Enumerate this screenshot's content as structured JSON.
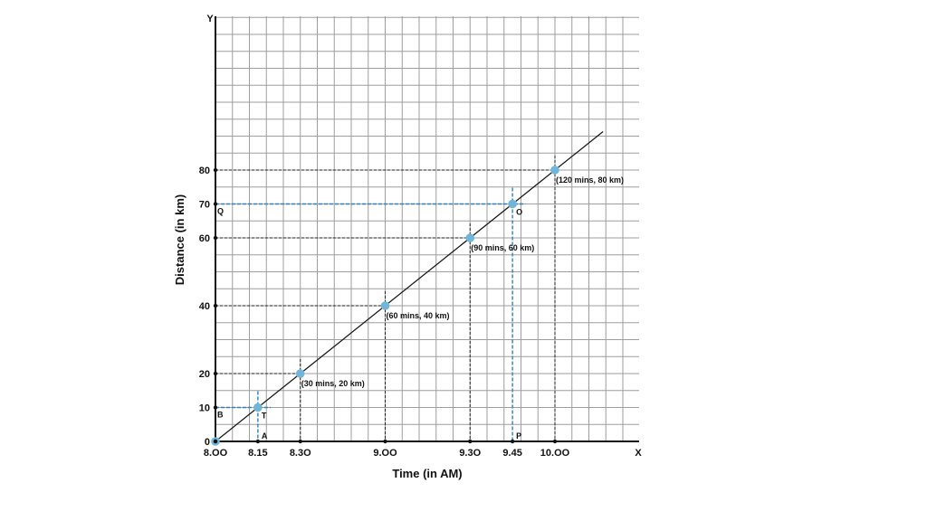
{
  "chart_data": {
    "type": "line",
    "xlabel": "Time (in AM)",
    "ylabel": "Distance (in km)",
    "x_axis_letter": "X",
    "y_axis_letter": "Y",
    "x_ticks": [
      {
        "minutes": 0,
        "label": "8.OO"
      },
      {
        "minutes": 15,
        "label": "8.15"
      },
      {
        "minutes": 30,
        "label": "8.3O"
      },
      {
        "minutes": 60,
        "label": "9.OO"
      },
      {
        "minutes": 90,
        "label": "9.3O"
      },
      {
        "minutes": 105,
        "label": "9.45"
      },
      {
        "minutes": 120,
        "label": "10.OO"
      }
    ],
    "y_ticks": [
      {
        "value": 0,
        "label": "0"
      },
      {
        "value": 10,
        "label": "10"
      },
      {
        "value": 20,
        "label": "20"
      },
      {
        "value": 40,
        "label": "40"
      },
      {
        "value": 60,
        "label": "60"
      },
      {
        "value": 70,
        "label": "70"
      },
      {
        "value": 80,
        "label": "80"
      }
    ],
    "series": [
      {
        "points": [
          {
            "x": 0,
            "y": 0
          },
          {
            "x": 15,
            "y": 10
          },
          {
            "x": 30,
            "y": 20,
            "label": "(30 mins, 20 km)"
          },
          {
            "x": 60,
            "y": 40,
            "label": "(60 mins, 40 km)"
          },
          {
            "x": 90,
            "y": 60,
            "label": "(90 mins, 60 km)"
          },
          {
            "x": 105,
            "y": 70
          },
          {
            "x": 120,
            "y": 80,
            "label": "(120 mins, 80 km)"
          }
        ]
      }
    ],
    "guide_letters": [
      {
        "text": "A",
        "x": 15,
        "y": 0
      },
      {
        "text": "B",
        "x": 0,
        "y": 10
      },
      {
        "text": "T",
        "x": 15,
        "y": 10
      },
      {
        "text": "P",
        "x": 105,
        "y": 0
      },
      {
        "text": "Q",
        "x": 0,
        "y": 70
      },
      {
        "text": "O",
        "x": 105,
        "y": 70
      }
    ],
    "highlight_points": [
      {
        "x": 15,
        "y": 10
      },
      {
        "x": 105,
        "y": 70
      }
    ],
    "colors": {
      "grid": "#9e9e9e",
      "line": "#1a1a1a",
      "point": "#6fb6dd",
      "highlight_guide": "#2f7fc1",
      "guide": "#222222"
    }
  }
}
